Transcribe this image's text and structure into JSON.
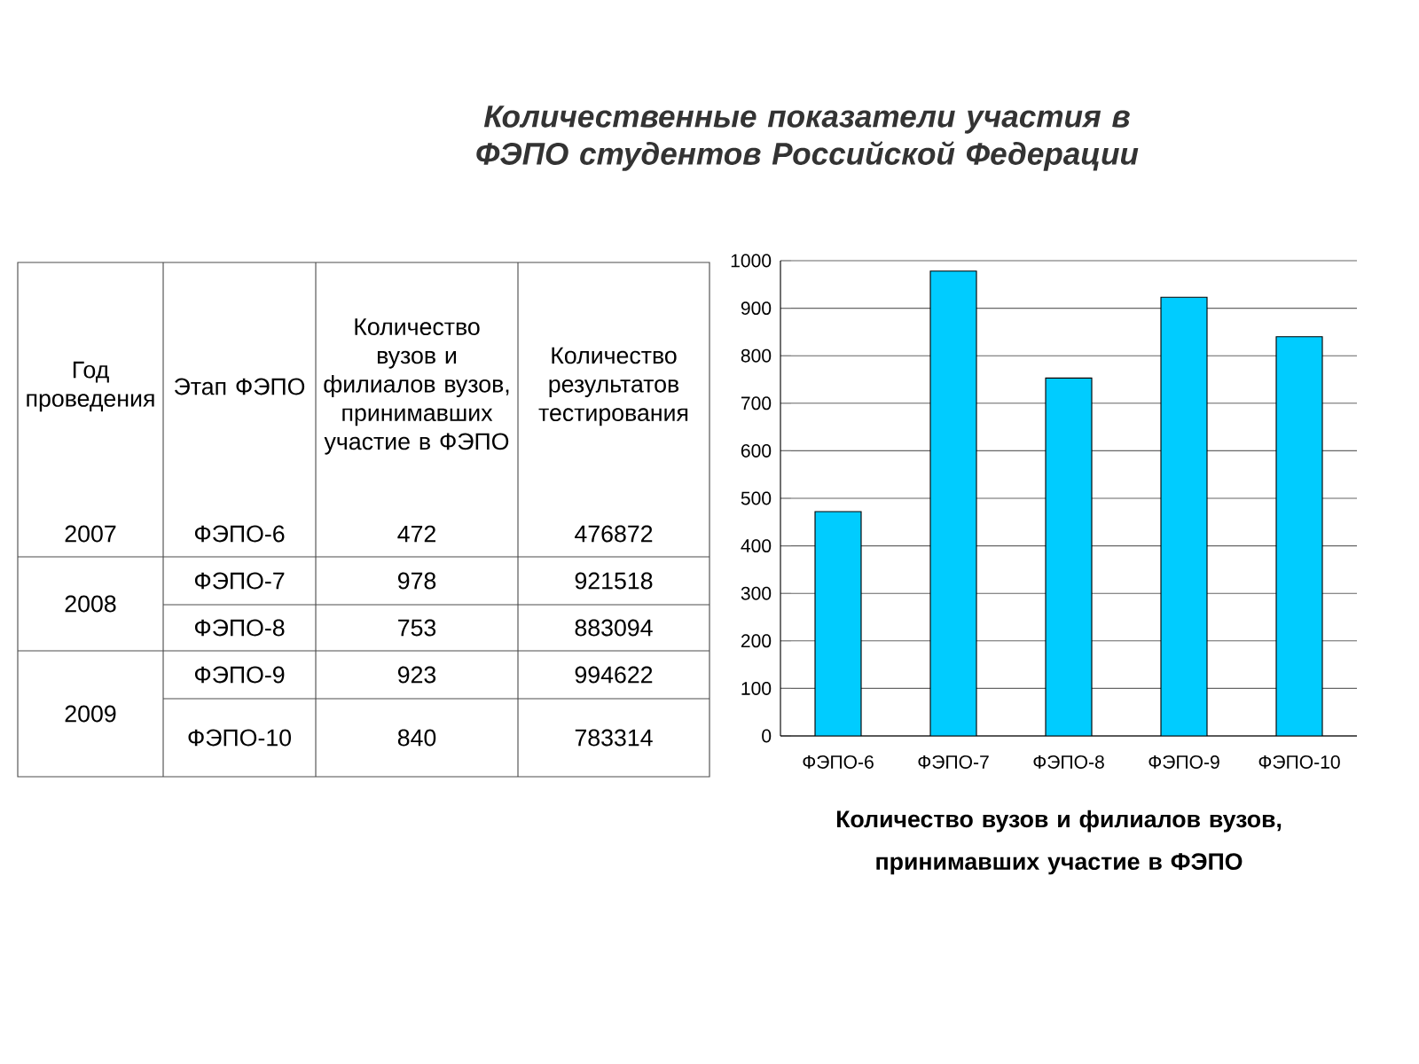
{
  "chart_data": {
    "type": "bar",
    "title": "Количественные показатели участия в ФЭПО студентов Российской Федерации",
    "xlabel": "Количество вузов и филиалов вузов, принимавших участие в ФЭПО",
    "categories": [
      "ФЭПО-6",
      "ФЭПО-7",
      "ФЭПО-8",
      "ФЭПО-9",
      "ФЭПО-10"
    ],
    "values": [
      472,
      978,
      753,
      923,
      840
    ],
    "color": "#00ccff",
    "ylim": [
      0,
      1000
    ],
    "yticks": [
      0,
      100,
      200,
      300,
      400,
      500,
      600,
      700,
      800,
      900,
      1000
    ],
    "grid": "y",
    "annotations": [
      "Год проведения",
      "Этап ФЭПО",
      "Количество вузов и филиалов вузов, принимавших участие в ФЭПО",
      "Количество результатов тестирования",
      "2007",
      "2008",
      "2009",
      "476872",
      "921518",
      "883094",
      "994622",
      "783314",
      "472",
      "978",
      "753",
      "923",
      "840"
    ]
  }
}
